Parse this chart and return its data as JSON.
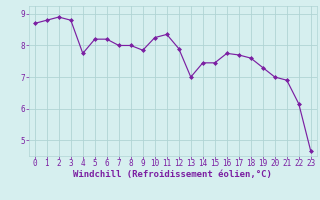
{
  "x": [
    0,
    1,
    2,
    3,
    4,
    5,
    6,
    7,
    8,
    9,
    10,
    11,
    12,
    13,
    14,
    15,
    16,
    17,
    18,
    19,
    20,
    21,
    22,
    23
  ],
  "y": [
    8.7,
    8.8,
    8.9,
    8.8,
    7.75,
    8.2,
    8.2,
    8.0,
    8.0,
    7.85,
    8.25,
    8.35,
    7.9,
    7.0,
    7.45,
    7.45,
    7.75,
    7.7,
    7.6,
    7.3,
    7.0,
    6.9,
    6.15,
    4.65
  ],
  "line_color": "#7b1fa2",
  "marker": "D",
  "marker_size": 2.0,
  "bg_color": "#d6efef",
  "grid_color": "#b0d4d4",
  "xlabel": "Windchill (Refroidissement éolien,°C)",
  "ylim": [
    4.5,
    9.25
  ],
  "xlim": [
    -0.5,
    23.5
  ],
  "yticks": [
    5,
    6,
    7,
    8,
    9
  ],
  "xticks": [
    0,
    1,
    2,
    3,
    4,
    5,
    6,
    7,
    8,
    9,
    10,
    11,
    12,
    13,
    14,
    15,
    16,
    17,
    18,
    19,
    20,
    21,
    22,
    23
  ],
  "tick_fontsize": 5.5,
  "xlabel_fontsize": 6.5,
  "linewidth": 0.85
}
